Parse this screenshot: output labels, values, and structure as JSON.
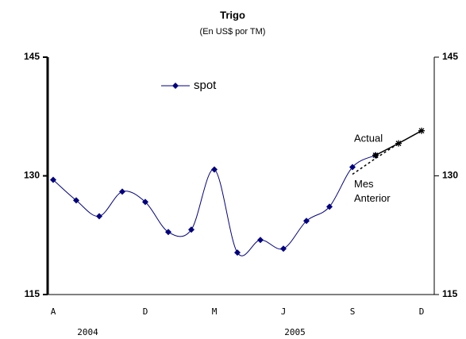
{
  "chart_data": {
    "type": "line",
    "title": "Trigo",
    "subtitle": "(En US$ por TM)",
    "categories": [
      "A",
      null,
      null,
      null,
      "D",
      null,
      null,
      "M",
      null,
      null,
      "J",
      null,
      null,
      "S",
      null,
      null,
      "D"
    ],
    "year_labels": [
      "2004",
      "2005"
    ],
    "series": [
      {
        "name": "spot",
        "color": "#000080",
        "marker": "diamond",
        "smooth": true,
        "values": [
          129.5,
          126.9,
          124.9,
          128.0,
          126.7,
          122.9,
          123.2,
          130.8,
          120.3,
          121.9,
          120.8,
          124.3,
          126.1,
          131.1,
          132.6,
          null,
          null
        ]
      },
      {
        "name": "Actual",
        "color": "#000000",
        "marker": "star",
        "values": [
          null,
          null,
          null,
          null,
          null,
          null,
          null,
          null,
          null,
          null,
          null,
          null,
          null,
          null,
          132.6,
          134.1,
          135.7
        ]
      },
      {
        "name": "Mes Anterior",
        "color": "#000000",
        "dashed": true,
        "values": [
          null,
          null,
          null,
          null,
          null,
          null,
          null,
          null,
          null,
          null,
          null,
          null,
          null,
          130.2,
          132.2,
          134.1,
          null
        ]
      }
    ],
    "ylim": [
      115,
      145
    ],
    "yticks": [
      115,
      130,
      145
    ],
    "y2lim": [
      115,
      145
    ],
    "y2ticks": [
      115,
      130,
      145
    ]
  }
}
